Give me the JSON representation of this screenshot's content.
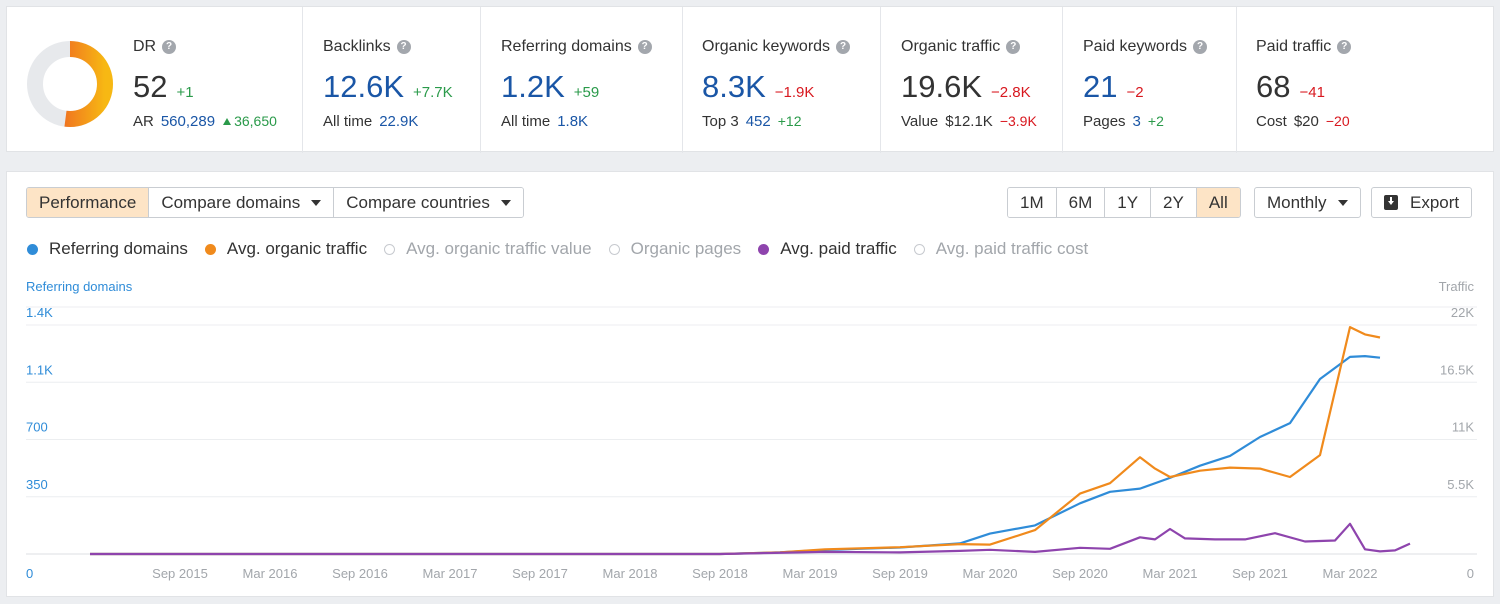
{
  "stats": {
    "dr": {
      "label": "DR",
      "value": "52",
      "delta": "+1",
      "ar_label": "AR",
      "ar_value": "560,289",
      "ar_delta": "36,650",
      "ring_fill": 0.52
    },
    "backlinks": {
      "label": "Backlinks",
      "value": "12.6K",
      "delta": "+7.7K",
      "sub_label": "All time",
      "sub_value": "22.9K"
    },
    "referring_domains": {
      "label": "Referring domains",
      "value": "1.2K",
      "delta": "+59",
      "sub_label": "All time",
      "sub_value": "1.8K"
    },
    "organic_keywords": {
      "label": "Organic keywords",
      "value": "8.3K",
      "delta": "−1.9K",
      "sub_label": "Top 3",
      "sub_value": "452",
      "sub_delta": "+12"
    },
    "organic_traffic": {
      "label": "Organic traffic",
      "value": "19.6K",
      "delta": "−2.8K",
      "sub_label": "Value",
      "sub_value": "$12.1K",
      "sub_delta": "−3.9K"
    },
    "paid_keywords": {
      "label": "Paid keywords",
      "value": "21",
      "delta": "−2",
      "sub_label": "Pages",
      "sub_value": "3",
      "sub_delta": "+2"
    },
    "paid_traffic": {
      "label": "Paid traffic",
      "value": "68",
      "delta": "−41",
      "sub_label": "Cost",
      "sub_value": "$20",
      "sub_delta": "−20"
    }
  },
  "toolbar": {
    "tabs": [
      "Performance",
      "Compare domains",
      "Compare countries"
    ],
    "ranges": [
      "1M",
      "6M",
      "1Y",
      "2Y",
      "All"
    ],
    "active_range": "All",
    "interval": "Monthly",
    "export": "Export"
  },
  "legend": [
    {
      "label": "Referring domains",
      "color": "#2f8cd8",
      "enabled": true
    },
    {
      "label": "Avg. organic traffic",
      "color": "#f08a1c",
      "enabled": true
    },
    {
      "label": "Avg. organic traffic value",
      "color": "#c7cacf",
      "enabled": false
    },
    {
      "label": "Organic pages",
      "color": "#c7cacf",
      "enabled": false
    },
    {
      "label": "Avg. paid traffic",
      "color": "#8e44ad",
      "enabled": true
    },
    {
      "label": "Avg. paid traffic cost",
      "color": "#c7cacf",
      "enabled": false
    }
  ],
  "colors": {
    "accent": "#1a56a6",
    "positive": "#2a9a4a",
    "negative": "#d8181f",
    "active_bg": "#fde4c6"
  },
  "chart_data": {
    "type": "line",
    "left_axis_title": "Referring domains",
    "right_axis_title": "Traffic",
    "left_ticks": [
      "0",
      "350",
      "700",
      "1.1K",
      "1.4K"
    ],
    "right_ticks": [
      "0",
      "5.5K",
      "11K",
      "16.5K",
      "22K"
    ],
    "x_ticks": [
      "Sep 2015",
      "Mar 2016",
      "Sep 2016",
      "Mar 2017",
      "Sep 2017",
      "Mar 2018",
      "Sep 2018",
      "Mar 2019",
      "Sep 2019",
      "Mar 2020",
      "Sep 2020",
      "Mar 2021",
      "Sep 2021",
      "Mar 2022"
    ],
    "ylim_left": [
      0,
      1400
    ],
    "ylim_right": [
      0,
      22000
    ],
    "grid": true,
    "series": [
      {
        "name": "Referring domains",
        "axis": "left",
        "color": "#2f8cd8",
        "points": [
          [
            "2015-03",
            0
          ],
          [
            "2018-09",
            0
          ],
          [
            "2019-01",
            10
          ],
          [
            "2019-04",
            25
          ],
          [
            "2019-09",
            40
          ],
          [
            "2020-01",
            65
          ],
          [
            "2020-03",
            125
          ],
          [
            "2020-06",
            175
          ],
          [
            "2020-09",
            310
          ],
          [
            "2020-11",
            380
          ],
          [
            "2021-01",
            400
          ],
          [
            "2021-03",
            465
          ],
          [
            "2021-05",
            540
          ],
          [
            "2021-07",
            600
          ],
          [
            "2021-09",
            715
          ],
          [
            "2021-11",
            800
          ],
          [
            "2022-01",
            1070
          ],
          [
            "2022-03",
            1205
          ],
          [
            "2022-04",
            1210
          ],
          [
            "2022-05",
            1200
          ]
        ]
      },
      {
        "name": "Avg. organic traffic",
        "axis": "right",
        "color": "#f08a1c",
        "points": [
          [
            "2015-03",
            0
          ],
          [
            "2018-09",
            0
          ],
          [
            "2019-01",
            150
          ],
          [
            "2019-04",
            450
          ],
          [
            "2019-09",
            650
          ],
          [
            "2020-01",
            950
          ],
          [
            "2020-03",
            900
          ],
          [
            "2020-06",
            2300
          ],
          [
            "2020-09",
            5800
          ],
          [
            "2020-11",
            6800
          ],
          [
            "2021-01",
            9300
          ],
          [
            "2021-02",
            8200
          ],
          [
            "2021-03",
            7400
          ],
          [
            "2021-05",
            8000
          ],
          [
            "2021-07",
            8300
          ],
          [
            "2021-09",
            8200
          ],
          [
            "2021-11",
            7400
          ],
          [
            "2022-01",
            9500
          ],
          [
            "2022-03",
            21800
          ],
          [
            "2022-04",
            21100
          ],
          [
            "2022-05",
            20800
          ]
        ]
      },
      {
        "name": "Avg. paid traffic",
        "axis": "right",
        "color": "#8e44ad",
        "points": [
          [
            "2015-03",
            0
          ],
          [
            "2018-09",
            0
          ],
          [
            "2019-04",
            200
          ],
          [
            "2019-09",
            150
          ],
          [
            "2020-01",
            300
          ],
          [
            "2020-03",
            400
          ],
          [
            "2020-06",
            200
          ],
          [
            "2020-09",
            600
          ],
          [
            "2020-11",
            500
          ],
          [
            "2021-01",
            1600
          ],
          [
            "2021-02",
            1400
          ],
          [
            "2021-03",
            2400
          ],
          [
            "2021-04",
            1500
          ],
          [
            "2021-06",
            1400
          ],
          [
            "2021-08",
            1400
          ],
          [
            "2021-10",
            2000
          ],
          [
            "2021-12",
            1200
          ],
          [
            "2022-02",
            1300
          ],
          [
            "2022-03",
            2900
          ],
          [
            "2022-04",
            450
          ],
          [
            "2022-05",
            250
          ],
          [
            "2022-06",
            350
          ],
          [
            "2022-07",
            1000
          ]
        ]
      }
    ]
  }
}
